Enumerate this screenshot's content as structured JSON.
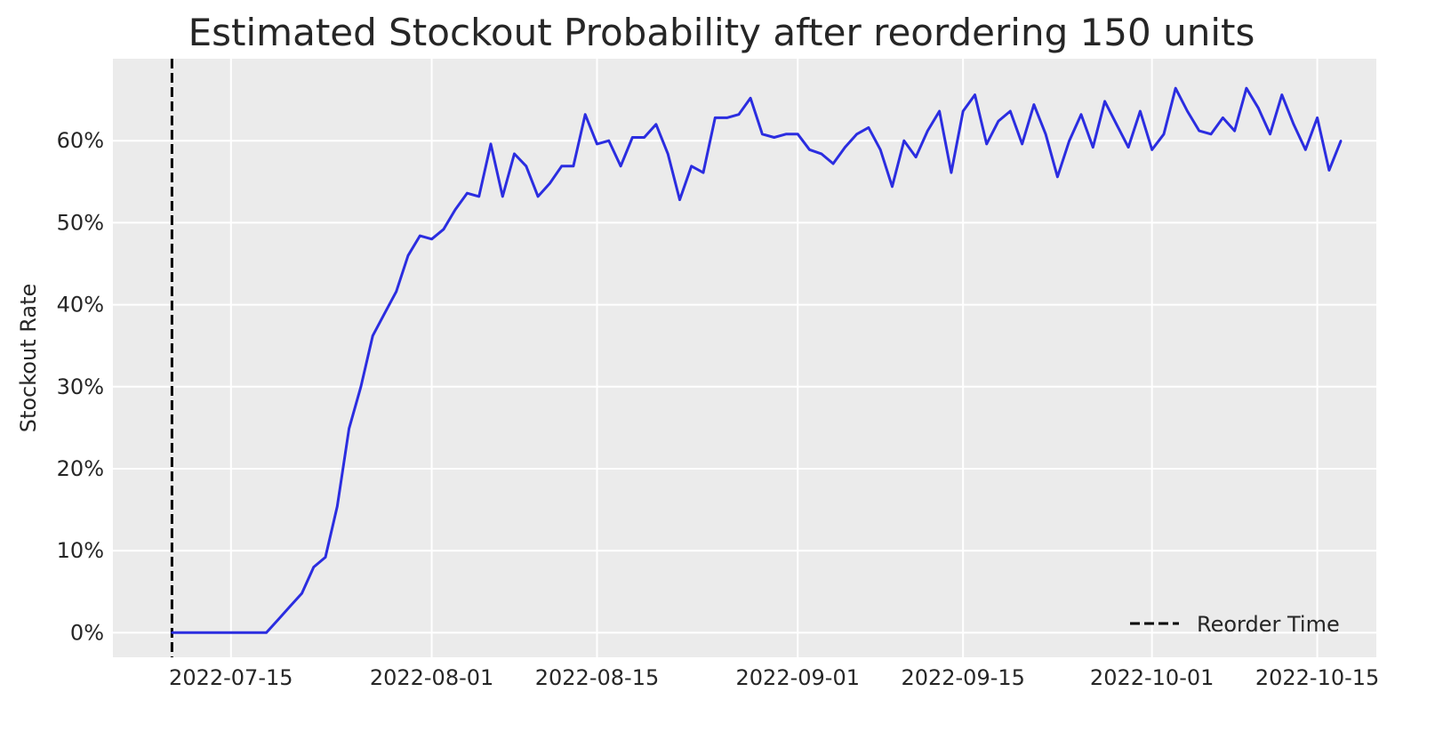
{
  "chart_data": {
    "type": "line",
    "title": "Estimated Stockout Probability after reordering 150 units",
    "xlabel": "",
    "ylabel": "Stockout Rate",
    "x_ticks": [
      "2022-07-15",
      "2022-08-01",
      "2022-08-15",
      "2022-09-01",
      "2022-09-15",
      "2022-10-01",
      "2022-10-15"
    ],
    "y_ticks": [
      0,
      10,
      20,
      30,
      40,
      50,
      60
    ],
    "y_tick_labels": [
      "0%",
      "10%",
      "20%",
      "30%",
      "40%",
      "50%",
      "60%"
    ],
    "xlim": [
      "2022-07-05",
      "2022-10-20"
    ],
    "ylim": [
      -3,
      70
    ],
    "grid": true,
    "background": "#ebebeb",
    "legend": {
      "position": "bottom-right",
      "entries": [
        {
          "label": "Reorder Time",
          "style": "dashed",
          "color": "#000000"
        }
      ]
    },
    "reorder_time": "2022-07-10",
    "series": [
      {
        "color": "#2b2de0",
        "x": [
          "2022-07-10",
          "2022-07-11",
          "2022-07-12",
          "2022-07-13",
          "2022-07-14",
          "2022-07-15",
          "2022-07-16",
          "2022-07-17",
          "2022-07-18",
          "2022-07-19",
          "2022-07-20",
          "2022-07-21",
          "2022-07-22",
          "2022-07-23",
          "2022-07-24",
          "2022-07-25",
          "2022-07-26",
          "2022-07-27",
          "2022-07-28",
          "2022-07-29",
          "2022-07-30",
          "2022-07-31",
          "2022-08-01",
          "2022-08-02",
          "2022-08-03",
          "2022-08-04",
          "2022-08-05",
          "2022-08-06",
          "2022-08-07",
          "2022-08-08",
          "2022-08-09",
          "2022-08-10",
          "2022-08-11",
          "2022-08-12",
          "2022-08-13",
          "2022-08-14",
          "2022-08-15",
          "2022-08-16",
          "2022-08-17",
          "2022-08-18",
          "2022-08-19",
          "2022-08-20",
          "2022-08-21",
          "2022-08-22",
          "2022-08-23",
          "2022-08-24",
          "2022-08-25",
          "2022-08-26",
          "2022-08-27",
          "2022-08-28",
          "2022-08-29",
          "2022-08-30",
          "2022-08-31",
          "2022-09-01",
          "2022-09-02",
          "2022-09-03",
          "2022-09-04",
          "2022-09-05",
          "2022-09-06",
          "2022-09-07",
          "2022-09-08",
          "2022-09-09",
          "2022-09-10",
          "2022-09-11",
          "2022-09-12",
          "2022-09-13",
          "2022-09-14",
          "2022-09-15",
          "2022-09-16",
          "2022-09-17",
          "2022-09-18",
          "2022-09-19",
          "2022-09-20",
          "2022-09-21",
          "2022-09-22",
          "2022-09-23",
          "2022-09-24",
          "2022-09-25",
          "2022-09-26",
          "2022-09-27",
          "2022-09-28",
          "2022-09-29",
          "2022-09-30",
          "2022-10-01",
          "2022-10-02",
          "2022-10-03",
          "2022-10-04",
          "2022-10-05",
          "2022-10-06",
          "2022-10-07",
          "2022-10-08",
          "2022-10-09",
          "2022-10-10",
          "2022-10-11",
          "2022-10-12",
          "2022-10-13",
          "2022-10-14",
          "2022-10-15",
          "2022-10-16",
          "2022-10-17"
        ],
        "y": [
          0,
          0,
          0,
          0,
          0,
          0,
          0,
          0,
          0,
          1.6,
          3.2,
          4.8,
          8.0,
          9.2,
          15.4,
          24.9,
          30.0,
          36.2,
          38.9,
          41.6,
          46.0,
          48.4,
          48.0,
          49.2,
          51.6,
          53.6,
          53.2,
          59.6,
          53.2,
          58.4,
          56.9,
          53.2,
          54.8,
          56.9,
          56.9,
          63.2,
          59.6,
          60.0,
          56.9,
          60.4,
          60.4,
          62.0,
          58.4,
          52.8,
          56.9,
          56.1,
          62.8,
          62.8,
          63.2,
          65.2,
          60.8,
          60.4,
          60.8,
          60.8,
          58.9,
          58.4,
          57.2,
          59.2,
          60.8,
          61.6,
          58.9,
          54.4,
          60.0,
          58.0,
          61.2,
          63.6,
          56.1,
          63.6,
          65.6,
          59.6,
          62.4,
          63.6,
          59.6,
          64.4,
          60.8,
          55.6,
          60.0,
          63.2,
          59.2,
          64.8,
          62.0,
          59.2,
          63.6,
          58.9,
          60.8,
          66.4,
          63.6,
          61.2,
          60.8,
          62.8,
          61.2,
          66.4,
          64.0,
          60.8,
          65.6,
          62.0,
          58.9,
          62.8,
          56.4,
          60.0
        ]
      }
    ]
  }
}
